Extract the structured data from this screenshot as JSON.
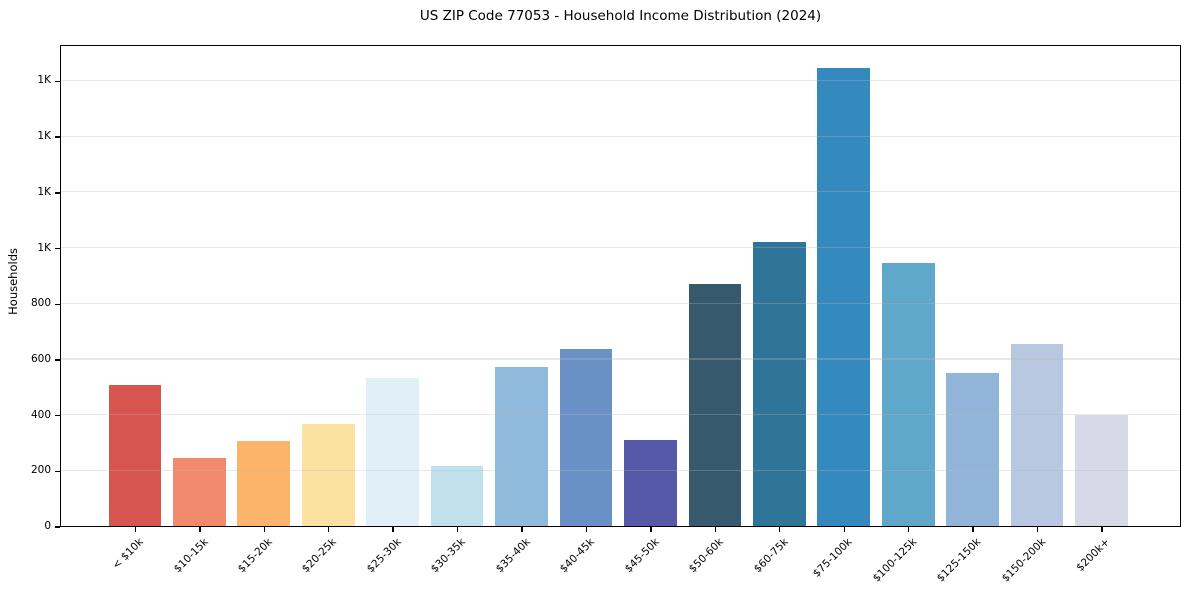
{
  "chart": {
    "title": "US ZIP Code 77053 - Household Income Distribution (2024)"
  },
  "chart_data": {
    "type": "bar",
    "title": "US ZIP Code 77053 - Household Income Distribution (2024)",
    "xlabel": "",
    "ylabel": "Households",
    "ylim": [
      0,
      1731
    ],
    "grid": true,
    "legend_position": "none",
    "categories": [
      "< $10k",
      "$10-15k",
      "$15-20k",
      "$20-25k",
      "$25-30k",
      "$30-35k",
      "$35-40k",
      "$40-45k",
      "$45-50k",
      "$50-60k",
      "$60-75k",
      "$75-100k",
      "$100-125k",
      "$125-150k",
      "$150-200k",
      "$200k+"
    ],
    "values": [
      505,
      245,
      305,
      365,
      530,
      215,
      570,
      635,
      310,
      870,
      1020,
      1645,
      945,
      550,
      655,
      400
    ],
    "bar_colors": [
      "#d6564f",
      "#f28a6e",
      "#fbb46a",
      "#fce2a0",
      "#e1eff6",
      "#bfe0ec",
      "#90badb",
      "#6a91c5",
      "#5659a7",
      "#36596e",
      "#2f7499",
      "#348abf",
      "#60a7cc",
      "#90b5d9",
      "#b8c8e1",
      "#d7d9e8"
    ],
    "yticks": [
      {
        "value": 0,
        "label": "0"
      },
      {
        "value": 200,
        "label": "200"
      },
      {
        "value": 400,
        "label": "400"
      },
      {
        "value": 600,
        "label": "600"
      },
      {
        "value": 800,
        "label": "800"
      },
      {
        "value": 1000,
        "label": "1K"
      },
      {
        "value": 1200,
        "label": "1K"
      },
      {
        "value": 1400,
        "label": "1K"
      },
      {
        "value": 1600,
        "label": "1K"
      }
    ]
  }
}
